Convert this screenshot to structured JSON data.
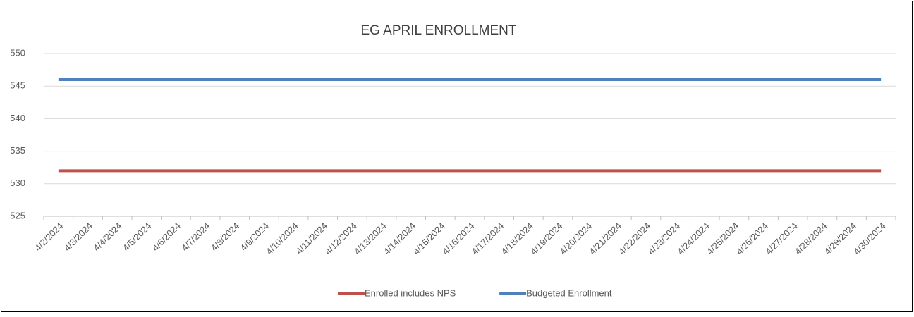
{
  "chart_data": {
    "type": "line",
    "title": "EG APRIL ENROLLMENT",
    "categories": [
      "4/2/2024",
      "4/3/2024",
      "4/4/2024",
      "4/5/2024",
      "4/6/2024",
      "4/7/2024",
      "4/8/2024",
      "4/9/2024",
      "4/10/2024",
      "4/11/2024",
      "4/12/2024",
      "4/13/2024",
      "4/14/2024",
      "4/15/2024",
      "4/16/2024",
      "4/17/2024",
      "4/18/2024",
      "4/19/2024",
      "4/20/2024",
      "4/21/2024",
      "4/22/2024",
      "4/23/2024",
      "4/24/2024",
      "4/25/2024",
      "4/26/2024",
      "4/27/2024",
      "4/28/2024",
      "4/29/2024",
      "4/30/2024"
    ],
    "series": [
      {
        "name": "Enrolled includes NPS",
        "color": "#c0504d",
        "values": [
          532,
          532,
          532,
          532,
          532,
          532,
          532,
          532,
          532,
          532,
          532,
          532,
          532,
          532,
          532,
          532,
          532,
          532,
          532,
          532,
          532,
          532,
          532,
          532,
          532,
          532,
          532,
          532,
          532
        ]
      },
      {
        "name": "Budgeted Enrollment",
        "color": "#4f81bd",
        "values": [
          546,
          546,
          546,
          546,
          546,
          546,
          546,
          546,
          546,
          546,
          546,
          546,
          546,
          546,
          546,
          546,
          546,
          546,
          546,
          546,
          546,
          546,
          546,
          546,
          546,
          546,
          546,
          546,
          546
        ]
      }
    ],
    "ylim": [
      525,
      550
    ],
    "yticks": [
      525,
      530,
      535,
      540,
      545,
      550
    ],
    "grid": true,
    "legend": "bottom"
  }
}
